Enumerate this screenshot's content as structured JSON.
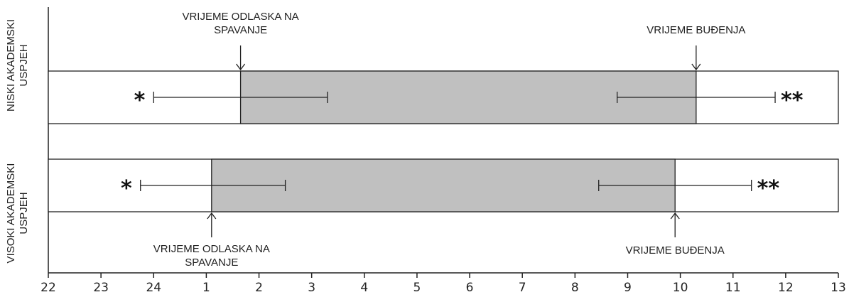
{
  "chart_data": {
    "type": "bar",
    "orientation": "horizontal",
    "x_ticks": [
      "22",
      "23",
      "24",
      "1",
      "2",
      "3",
      "4",
      "5",
      "6",
      "7",
      "8",
      "9",
      "10",
      "11",
      "12",
      "13"
    ],
    "xlim": [
      "22",
      "13"
    ],
    "grid": false,
    "colors": {
      "bar": "#c0c0c0",
      "line": "#222222"
    },
    "groups": [
      {
        "label": "NISKI AKADEMSKI USPJEH",
        "bedtime": 1.65,
        "bedtime_error": [
          24.0,
          3.3
        ],
        "bedtime_marker": "*",
        "wake_time": 10.3,
        "wake_time_error": [
          8.8,
          11.8
        ],
        "wake_marker": "**",
        "bedtime_label": [
          "VRIJEME ODLASKA NA",
          "SPAVANJE"
        ],
        "wake_label": "VRIJEME BUĐENJA"
      },
      {
        "label": "VISOKI AKADEMSKI USPJEH",
        "bedtime": 1.1,
        "bedtime_error": [
          23.75,
          2.5
        ],
        "bedtime_marker": "*",
        "wake_time": 9.9,
        "wake_time_error": [
          8.45,
          11.35
        ],
        "wake_marker": "**",
        "bedtime_label": [
          "VRIJEME ODLASKA NA",
          "SPAVANJE"
        ],
        "wake_label": "VRIJEME BUĐENJA"
      }
    ]
  }
}
